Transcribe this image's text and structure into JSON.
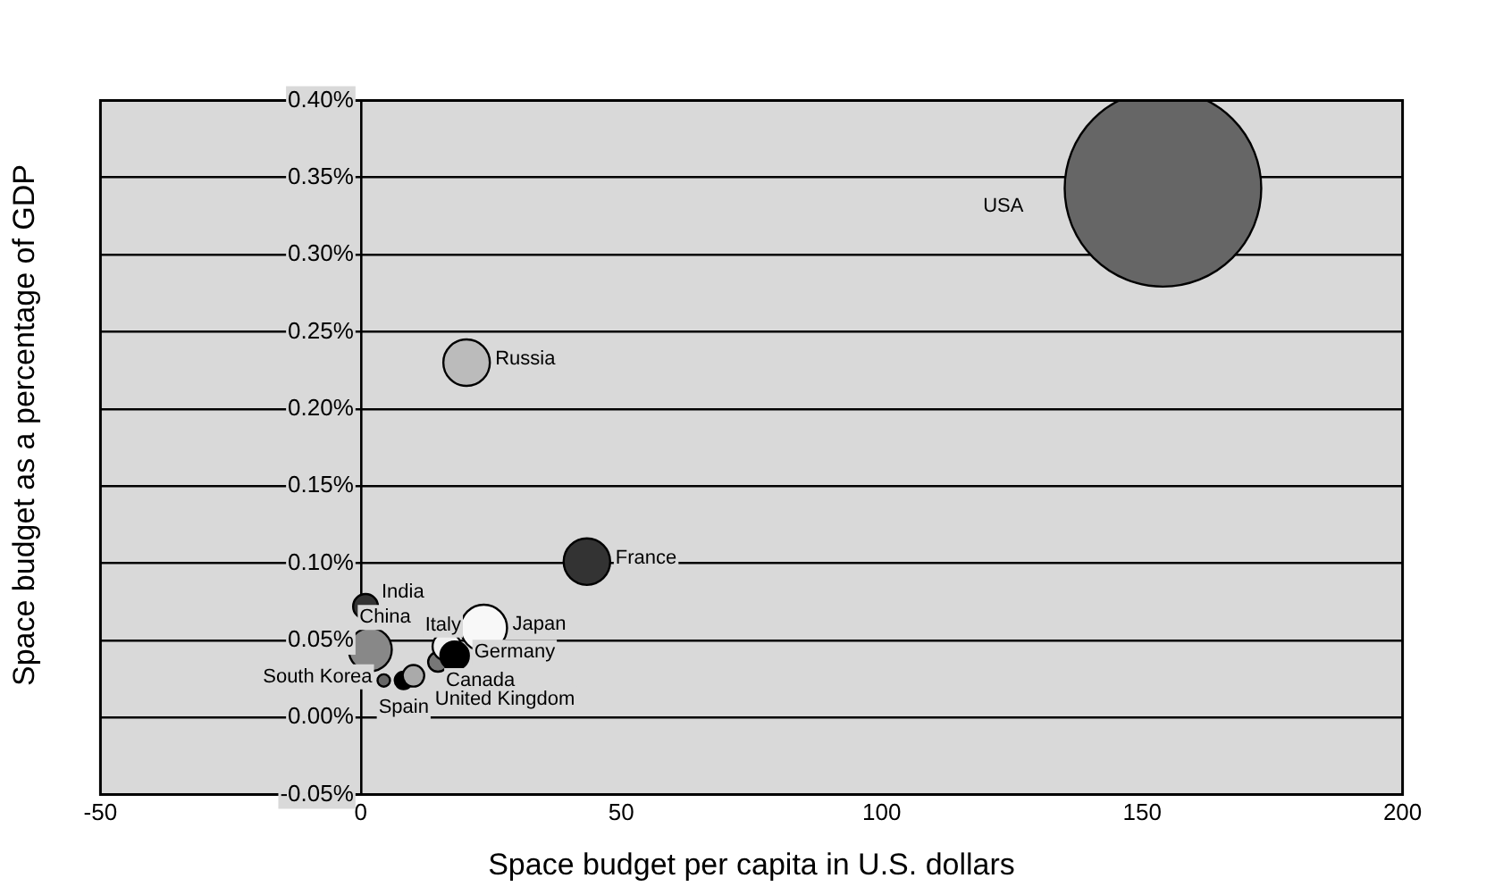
{
  "chart_data": {
    "type": "bubble",
    "xlabel": "Space budget per capita in U.S. dollars",
    "ylabel": "Space budget as a percentage of GDP",
    "xlim": [
      -50,
      200
    ],
    "xticks": [
      -50,
      0,
      50,
      100,
      150,
      200
    ],
    "ylim": [
      -0.05,
      0.4
    ],
    "yticks": [
      {
        "value": -0.05,
        "label": "-0.05%"
      },
      {
        "value": 0,
        "label": "0.00%"
      },
      {
        "value": 0.05,
        "label": "0.05%"
      },
      {
        "value": 0.1,
        "label": "0.10%"
      },
      {
        "value": 0.15,
        "label": "0.15%"
      },
      {
        "value": 0.2,
        "label": "0.20%"
      },
      {
        "value": 0.25,
        "label": "0.25%"
      },
      {
        "value": 0.3,
        "label": "0.30%"
      },
      {
        "value": 0.35,
        "label": "0.35%"
      },
      {
        "value": 0.4,
        "label": "0.40%"
      }
    ],
    "grid": "y",
    "legend": false,
    "series": [
      {
        "name": "USA",
        "color": "#666666",
        "x": [
          154
        ],
        "values": [
          0.343
        ],
        "sizes": [
          1
        ]
      },
      {
        "name": "Russia",
        "color": "#bbbbbb",
        "x": [
          20.3
        ],
        "values": [
          0.23
        ],
        "sizes": [
          0.056
        ]
      },
      {
        "name": "France",
        "color": "#333333",
        "x": [
          43.4
        ],
        "values": [
          0.101
        ],
        "sizes": [
          0.056
        ]
      },
      {
        "name": "Japan",
        "color": "#f8f8f8",
        "x": [
          23.6
        ],
        "values": [
          0.058
        ],
        "sizes": [
          0.056
        ]
      },
      {
        "name": "India",
        "color": "#333333",
        "x": [
          0.9
        ],
        "values": [
          0.072
        ],
        "sizes": [
          0.016
        ]
      },
      {
        "name": "China",
        "color": "#888888",
        "x": [
          1.8
        ],
        "values": [
          0.044
        ],
        "sizes": [
          0.048
        ]
      },
      {
        "name": "Germany",
        "color": "#000000",
        "x": [
          18
        ],
        "values": [
          0.04
        ],
        "sizes": [
          0.021
        ]
      },
      {
        "name": "Italy",
        "color": "#f0f0f0",
        "x": [
          16.5
        ],
        "values": [
          0.046
        ],
        "sizes": [
          0.021
        ]
      },
      {
        "name": "Canada",
        "color": "#777777",
        "x": [
          14.8
        ],
        "values": [
          0.036
        ],
        "sizes": [
          0.01
        ]
      },
      {
        "name": "United Kingdom",
        "color": "#aaaaaa",
        "x": [
          10.1
        ],
        "values": [
          0.027
        ],
        "sizes": [
          0.012
        ]
      },
      {
        "name": "Spain",
        "color": "#000000",
        "x": [
          8.2
        ],
        "values": [
          0.024
        ],
        "sizes": [
          0.008
        ]
      },
      {
        "name": "South Korea",
        "color": "#666666",
        "x": [
          4.4
        ],
        "values": [
          0.024
        ],
        "sizes": [
          0.004
        ]
      }
    ]
  }
}
